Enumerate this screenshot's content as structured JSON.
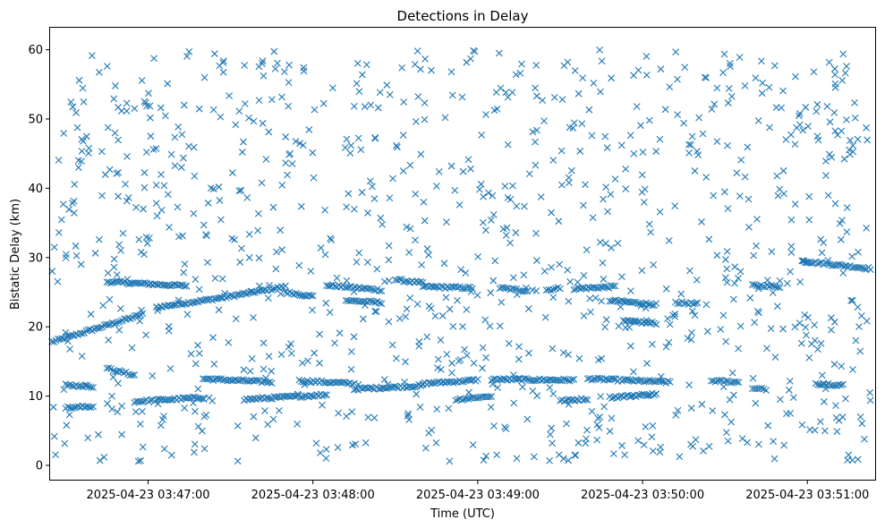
{
  "chart_data": {
    "type": "scatter",
    "title": "Detections in Delay",
    "xlabel": "Time (UTC)",
    "ylabel": "Bistatic Delay (km)",
    "marker": "x",
    "color": "#1f77b4",
    "grid": false,
    "legend": "none",
    "x_unit": "UTC time",
    "xlim": [
      "2025-04-23 03:46:24",
      "2025-04-23 03:51:25"
    ],
    "ylim": [
      -2.2,
      63.3
    ],
    "x_ticks": [
      "2025-04-23 03:47:00",
      "2025-04-23 03:48:00",
      "2025-04-23 03:49:00",
      "2025-04-23 03:50:00",
      "2025-04-23 03:51:00"
    ],
    "y_ticks": [
      "0",
      "10",
      "20",
      "30",
      "40",
      "50",
      "60"
    ],
    "tracks": [
      {
        "x_start": "2025-04-23 03:46:25",
        "x_end": "2025-04-23 03:46:58",
        "y_start": 17.8,
        "y_end": 21.8
      },
      {
        "x_start": "2025-04-23 03:47:03",
        "x_end": "2025-04-23 03:47:27",
        "y_start": 22.8,
        "y_end": 24.2
      },
      {
        "x_start": "2025-04-23 03:47:27",
        "x_end": "2025-04-23 03:47:50",
        "y_start": 24.2,
        "y_end": 25.8
      },
      {
        "x_start": "2025-04-23 03:46:45",
        "x_end": "2025-04-23 03:47:14",
        "y_start": 26.5,
        "y_end": 25.9
      },
      {
        "x_start": "2025-04-23 03:47:50",
        "x_end": "2025-04-23 03:48:00",
        "y_start": 25.0,
        "y_end": 24.4
      },
      {
        "x_start": "2025-04-23 03:48:05",
        "x_end": "2025-04-23 03:48:25",
        "y_start": 26.0,
        "y_end": 25.3
      },
      {
        "x_start": "2025-04-23 03:48:12",
        "x_end": "2025-04-23 03:48:25",
        "y_start": 23.8,
        "y_end": 23.5
      },
      {
        "x_start": "2025-04-23 03:48:30",
        "x_end": "2025-04-23 03:48:40",
        "y_start": 26.8,
        "y_end": 26.3
      },
      {
        "x_start": "2025-04-23 03:48:40",
        "x_end": "2025-04-23 03:48:58",
        "y_start": 25.8,
        "y_end": 25.6
      },
      {
        "x_start": "2025-04-23 03:49:08",
        "x_end": "2025-04-23 03:49:18",
        "y_start": 25.6,
        "y_end": 25.2
      },
      {
        "x_start": "2025-04-23 03:49:25",
        "x_end": "2025-04-23 03:49:30",
        "y_start": 25.3,
        "y_end": 25.6
      },
      {
        "x_start": "2025-04-23 03:49:35",
        "x_end": "2025-04-23 03:49:50",
        "y_start": 25.5,
        "y_end": 25.8
      },
      {
        "x_start": "2025-04-23 03:49:48",
        "x_end": "2025-04-23 03:50:05",
        "y_start": 23.8,
        "y_end": 23.2
      },
      {
        "x_start": "2025-04-23 03:49:53",
        "x_end": "2025-04-23 03:50:05",
        "y_start": 20.8,
        "y_end": 20.5
      },
      {
        "x_start": "2025-04-23 03:50:12",
        "x_end": "2025-04-23 03:50:20",
        "y_start": 23.5,
        "y_end": 23.3
      },
      {
        "x_start": "2025-04-23 03:50:40",
        "x_end": "2025-04-23 03:50:50",
        "y_start": 26.0,
        "y_end": 25.8
      },
      {
        "x_start": "2025-04-23 03:50:58",
        "x_end": "2025-04-23 03:51:00",
        "y_start": 29.5,
        "y_end": 29.4
      },
      {
        "x_start": "2025-04-23 03:51:00",
        "x_end": "2025-04-23 03:51:23",
        "y_start": 29.4,
        "y_end": 28.4
      },
      {
        "x_start": "2025-04-23 03:46:45",
        "x_end": "2025-04-23 03:46:55",
        "y_start": 14.0,
        "y_end": 13.0
      },
      {
        "x_start": "2025-04-23 03:47:20",
        "x_end": "2025-04-23 03:47:45",
        "y_start": 12.5,
        "y_end": 12.0
      },
      {
        "x_start": "2025-04-23 03:47:55",
        "x_end": "2025-04-23 03:48:15",
        "y_start": 12.2,
        "y_end": 11.8
      },
      {
        "x_start": "2025-04-23 03:48:15",
        "x_end": "2025-04-23 03:48:40",
        "y_start": 11.0,
        "y_end": 11.5
      },
      {
        "x_start": "2025-04-23 03:48:40",
        "x_end": "2025-04-23 03:49:00",
        "y_start": 11.8,
        "y_end": 12.3
      },
      {
        "x_start": "2025-04-23 03:49:05",
        "x_end": "2025-04-23 03:49:35",
        "y_start": 12.4,
        "y_end": 12.3
      },
      {
        "x_start": "2025-04-23 03:49:40",
        "x_end": "2025-04-23 03:50:10",
        "y_start": 12.5,
        "y_end": 12.0
      },
      {
        "x_start": "2025-04-23 03:50:25",
        "x_end": "2025-04-23 03:50:35",
        "y_start": 12.2,
        "y_end": 12.0
      },
      {
        "x_start": "2025-04-23 03:46:55",
        "x_end": "2025-04-23 03:47:20",
        "y_start": 9.2,
        "y_end": 9.8
      },
      {
        "x_start": "2025-04-23 03:47:35",
        "x_end": "2025-04-23 03:48:05",
        "y_start": 9.5,
        "y_end": 10.2
      },
      {
        "x_start": "2025-04-23 03:48:52",
        "x_end": "2025-04-23 03:49:05",
        "y_start": 9.5,
        "y_end": 10.0
      },
      {
        "x_start": "2025-04-23 03:49:30",
        "x_end": "2025-04-23 03:49:40",
        "y_start": 9.3,
        "y_end": 9.6
      },
      {
        "x_start": "2025-04-23 03:49:48",
        "x_end": "2025-04-23 03:50:05",
        "y_start": 9.8,
        "y_end": 10.3
      },
      {
        "x_start": "2025-04-23 03:50:40",
        "x_end": "2025-04-23 03:50:45",
        "y_start": 11.0,
        "y_end": 11.0
      },
      {
        "x_start": "2025-04-23 03:51:03",
        "x_end": "2025-04-23 03:51:13",
        "y_start": 11.8,
        "y_end": 11.6
      },
      {
        "x_start": "2025-04-23 03:46:30",
        "x_end": "2025-04-23 03:46:40",
        "y_start": 11.6,
        "y_end": 11.4
      },
      {
        "x_start": "2025-04-23 03:46:30",
        "x_end": "2025-04-23 03:46:40",
        "y_start": 8.3,
        "y_end": 8.5
      }
    ],
    "background_clutter": {
      "x_range": [
        "2025-04-23 03:46:25",
        "2025-04-23 03:51:23"
      ],
      "y_range": [
        0.5,
        60.0
      ],
      "approx_count": 1000
    }
  }
}
